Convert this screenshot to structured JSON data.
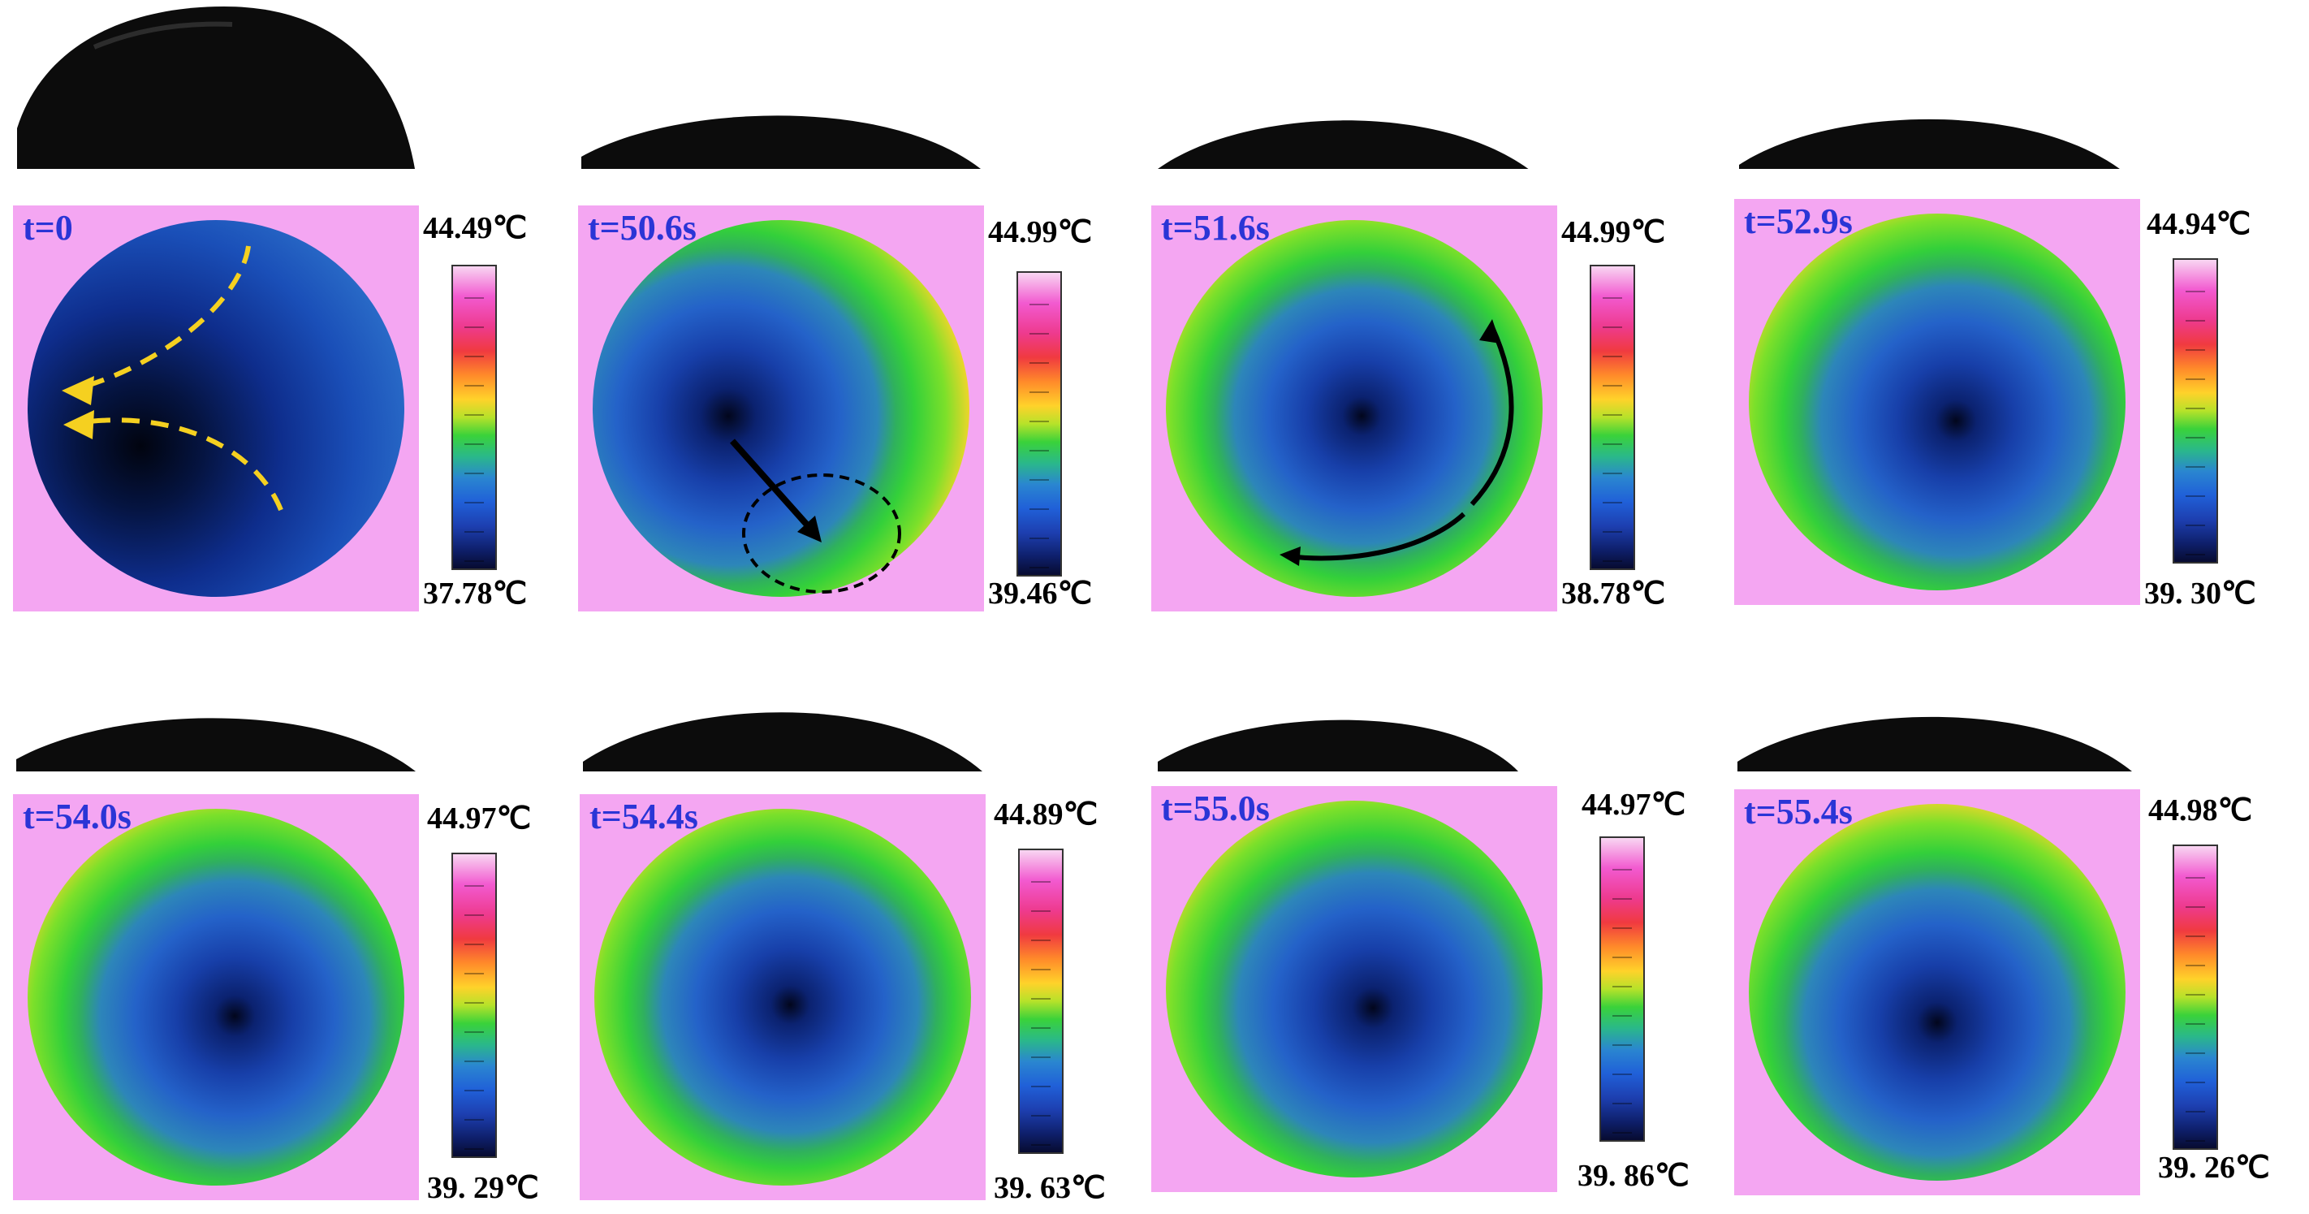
{
  "panels": [
    {
      "time": "t=0",
      "max": "44.49℃",
      "min": "37.78℃"
    },
    {
      "time": "t=50.6s",
      "max": "44.99℃",
      "min": "39.46℃"
    },
    {
      "time": "t=51.6s",
      "max": "44.99℃",
      "min": "38.78℃"
    },
    {
      "time": "t=52.9s",
      "max": "44.94℃",
      "min": "39. 30℃"
    },
    {
      "time": "t=54.0s",
      "max": "44.97℃",
      "min": "39. 29℃"
    },
    {
      "time": "t=54.4s",
      "max": "44.89℃",
      "min": "39. 63℃"
    },
    {
      "time": "t=55.0s",
      "max": "44.97℃",
      "min": "39. 86℃"
    },
    {
      "time": "t=55.4s",
      "max": "44.98℃",
      "min": "39. 26℃"
    }
  ],
  "colors": {
    "label": "#2a35d6",
    "flow_arrow": "#f5d020",
    "motion_arrow": "#000000"
  }
}
